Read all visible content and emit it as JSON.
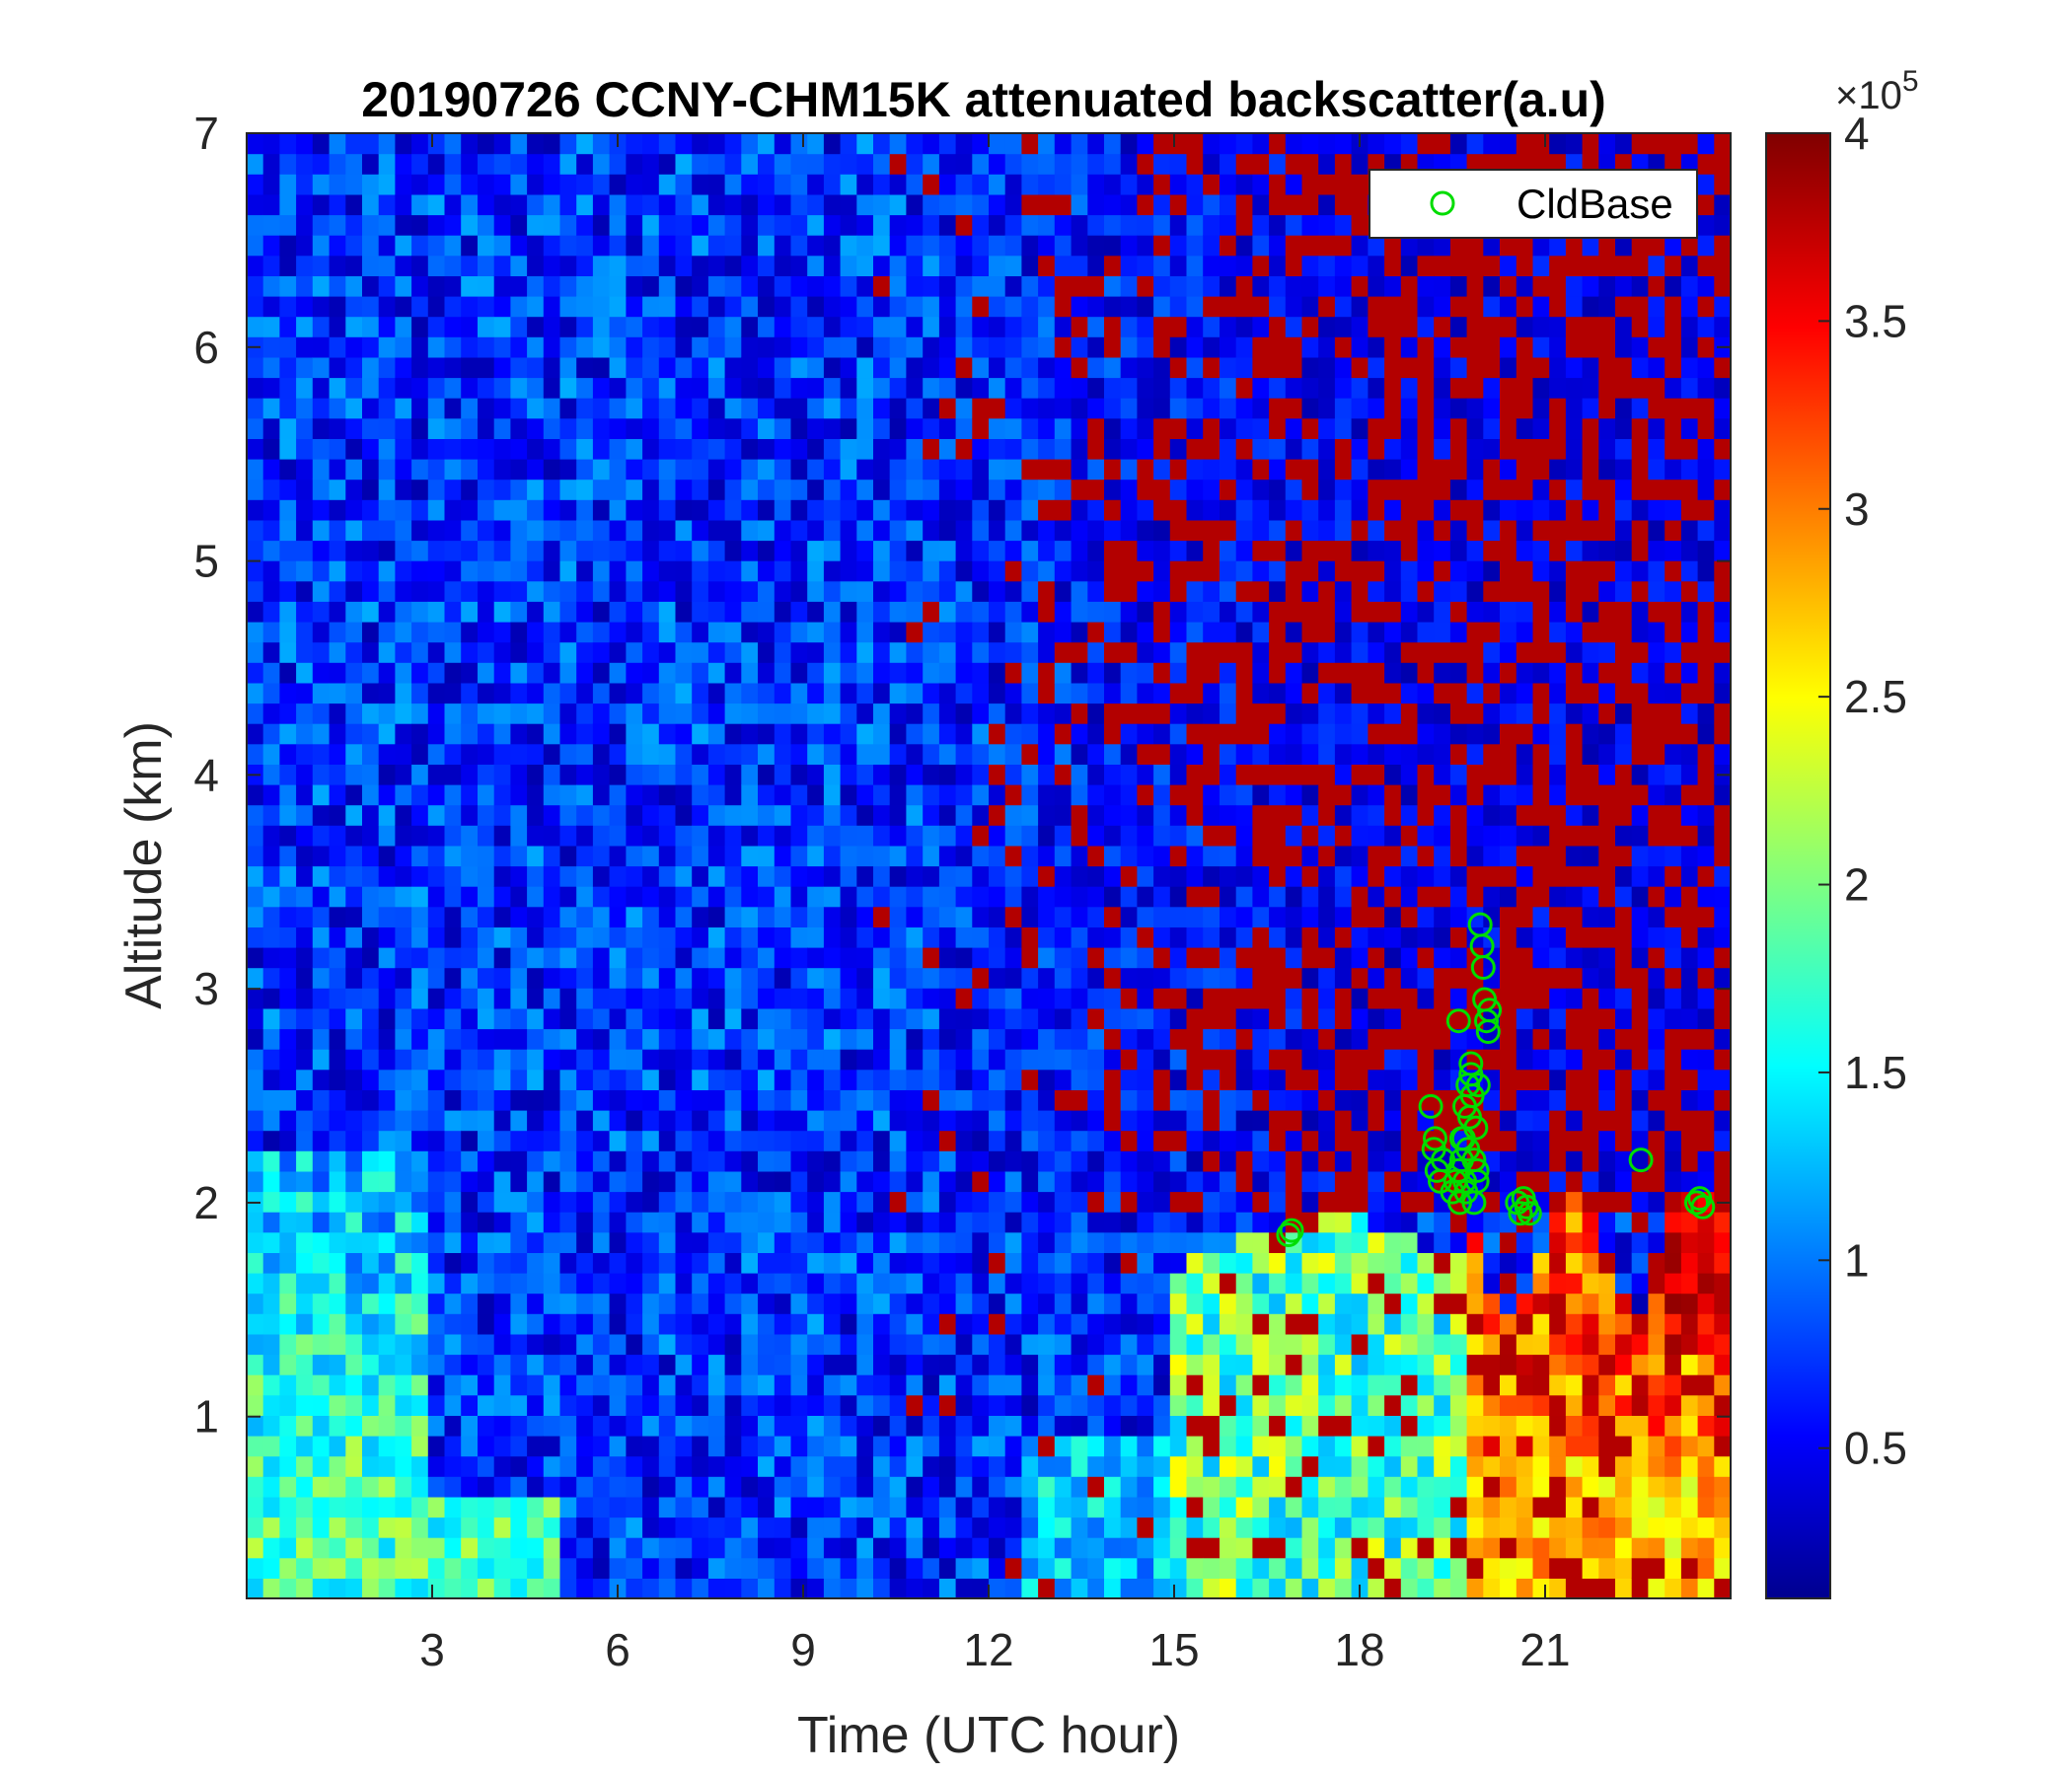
{
  "chart_data": {
    "type": "heatmap",
    "title": "20190726 CCNY-CHM15K attenuated backscatter(a.u)",
    "xlabel": "Time (UTC hour)",
    "ylabel": "Altitude (km)",
    "xlim": [
      0,
      24
    ],
    "ylim": [
      0.15,
      7
    ],
    "xticks": [
      3,
      6,
      9,
      12,
      15,
      18,
      21
    ],
    "xtick_labels": [
      "3",
      "6",
      "9",
      "12",
      "15",
      "18",
      "21"
    ],
    "yticks": [
      1,
      2,
      3,
      4,
      5,
      6,
      7
    ],
    "ytick_labels": [
      "1",
      "2",
      "3",
      "4",
      "5",
      "6",
      "7"
    ],
    "colorbar": {
      "colormap": "jet",
      "clim": [
        0.1,
        4
      ],
      "ticks": [
        0.5,
        1,
        1.5,
        2,
        2.5,
        3,
        3.5,
        4
      ],
      "tick_labels": [
        "0.5",
        "1",
        "1.5",
        "2",
        "2.5",
        "3",
        "3.5",
        "4"
      ],
      "multiplier_prefix": "×10",
      "multiplier_exponent": "5"
    },
    "legend": {
      "position": "top-right",
      "entries": [
        "CldBase"
      ]
    },
    "series": [
      {
        "name": "CldBase",
        "type": "scatter",
        "marker": "circle",
        "color": "#00dd00",
        "x": [
          16.85,
          16.9,
          19.15,
          19.2,
          19.25,
          19.3,
          19.22,
          19.35,
          19.5,
          19.55,
          19.6,
          19.62,
          19.65,
          19.68,
          19.7,
          19.72,
          19.75,
          19.78,
          19.8,
          19.82,
          19.85,
          19.88,
          19.9,
          19.92,
          19.95,
          19.98,
          20.0,
          20.02,
          20.05,
          20.08,
          20.1,
          19.6,
          19.65,
          19.7,
          19.75,
          19.8,
          19.85,
          19.9,
          20.55,
          20.6,
          20.65,
          20.7,
          20.75,
          22.55,
          23.45,
          23.5,
          23.55
        ],
        "y": [
          1.85,
          1.87,
          2.45,
          2.25,
          2.15,
          2.1,
          2.3,
          2.2,
          2.05,
          2.1,
          2.15,
          2.0,
          2.2,
          2.3,
          2.1,
          2.05,
          2.25,
          2.4,
          2.6,
          2.5,
          2.2,
          2.35,
          2.15,
          2.55,
          3.3,
          3.2,
          3.1,
          2.95,
          2.85,
          2.8,
          2.9,
          2.85,
          2.3,
          2.45,
          2.55,
          2.65,
          2.0,
          2.1,
          2.0,
          1.95,
          2.02,
          1.98,
          1.95,
          2.2,
          2.0,
          2.02,
          1.98
        ]
      }
    ]
  },
  "colors": {
    "cloud_base_marker": "#00dd00",
    "axis": "#262626",
    "background": "#ffffff"
  }
}
